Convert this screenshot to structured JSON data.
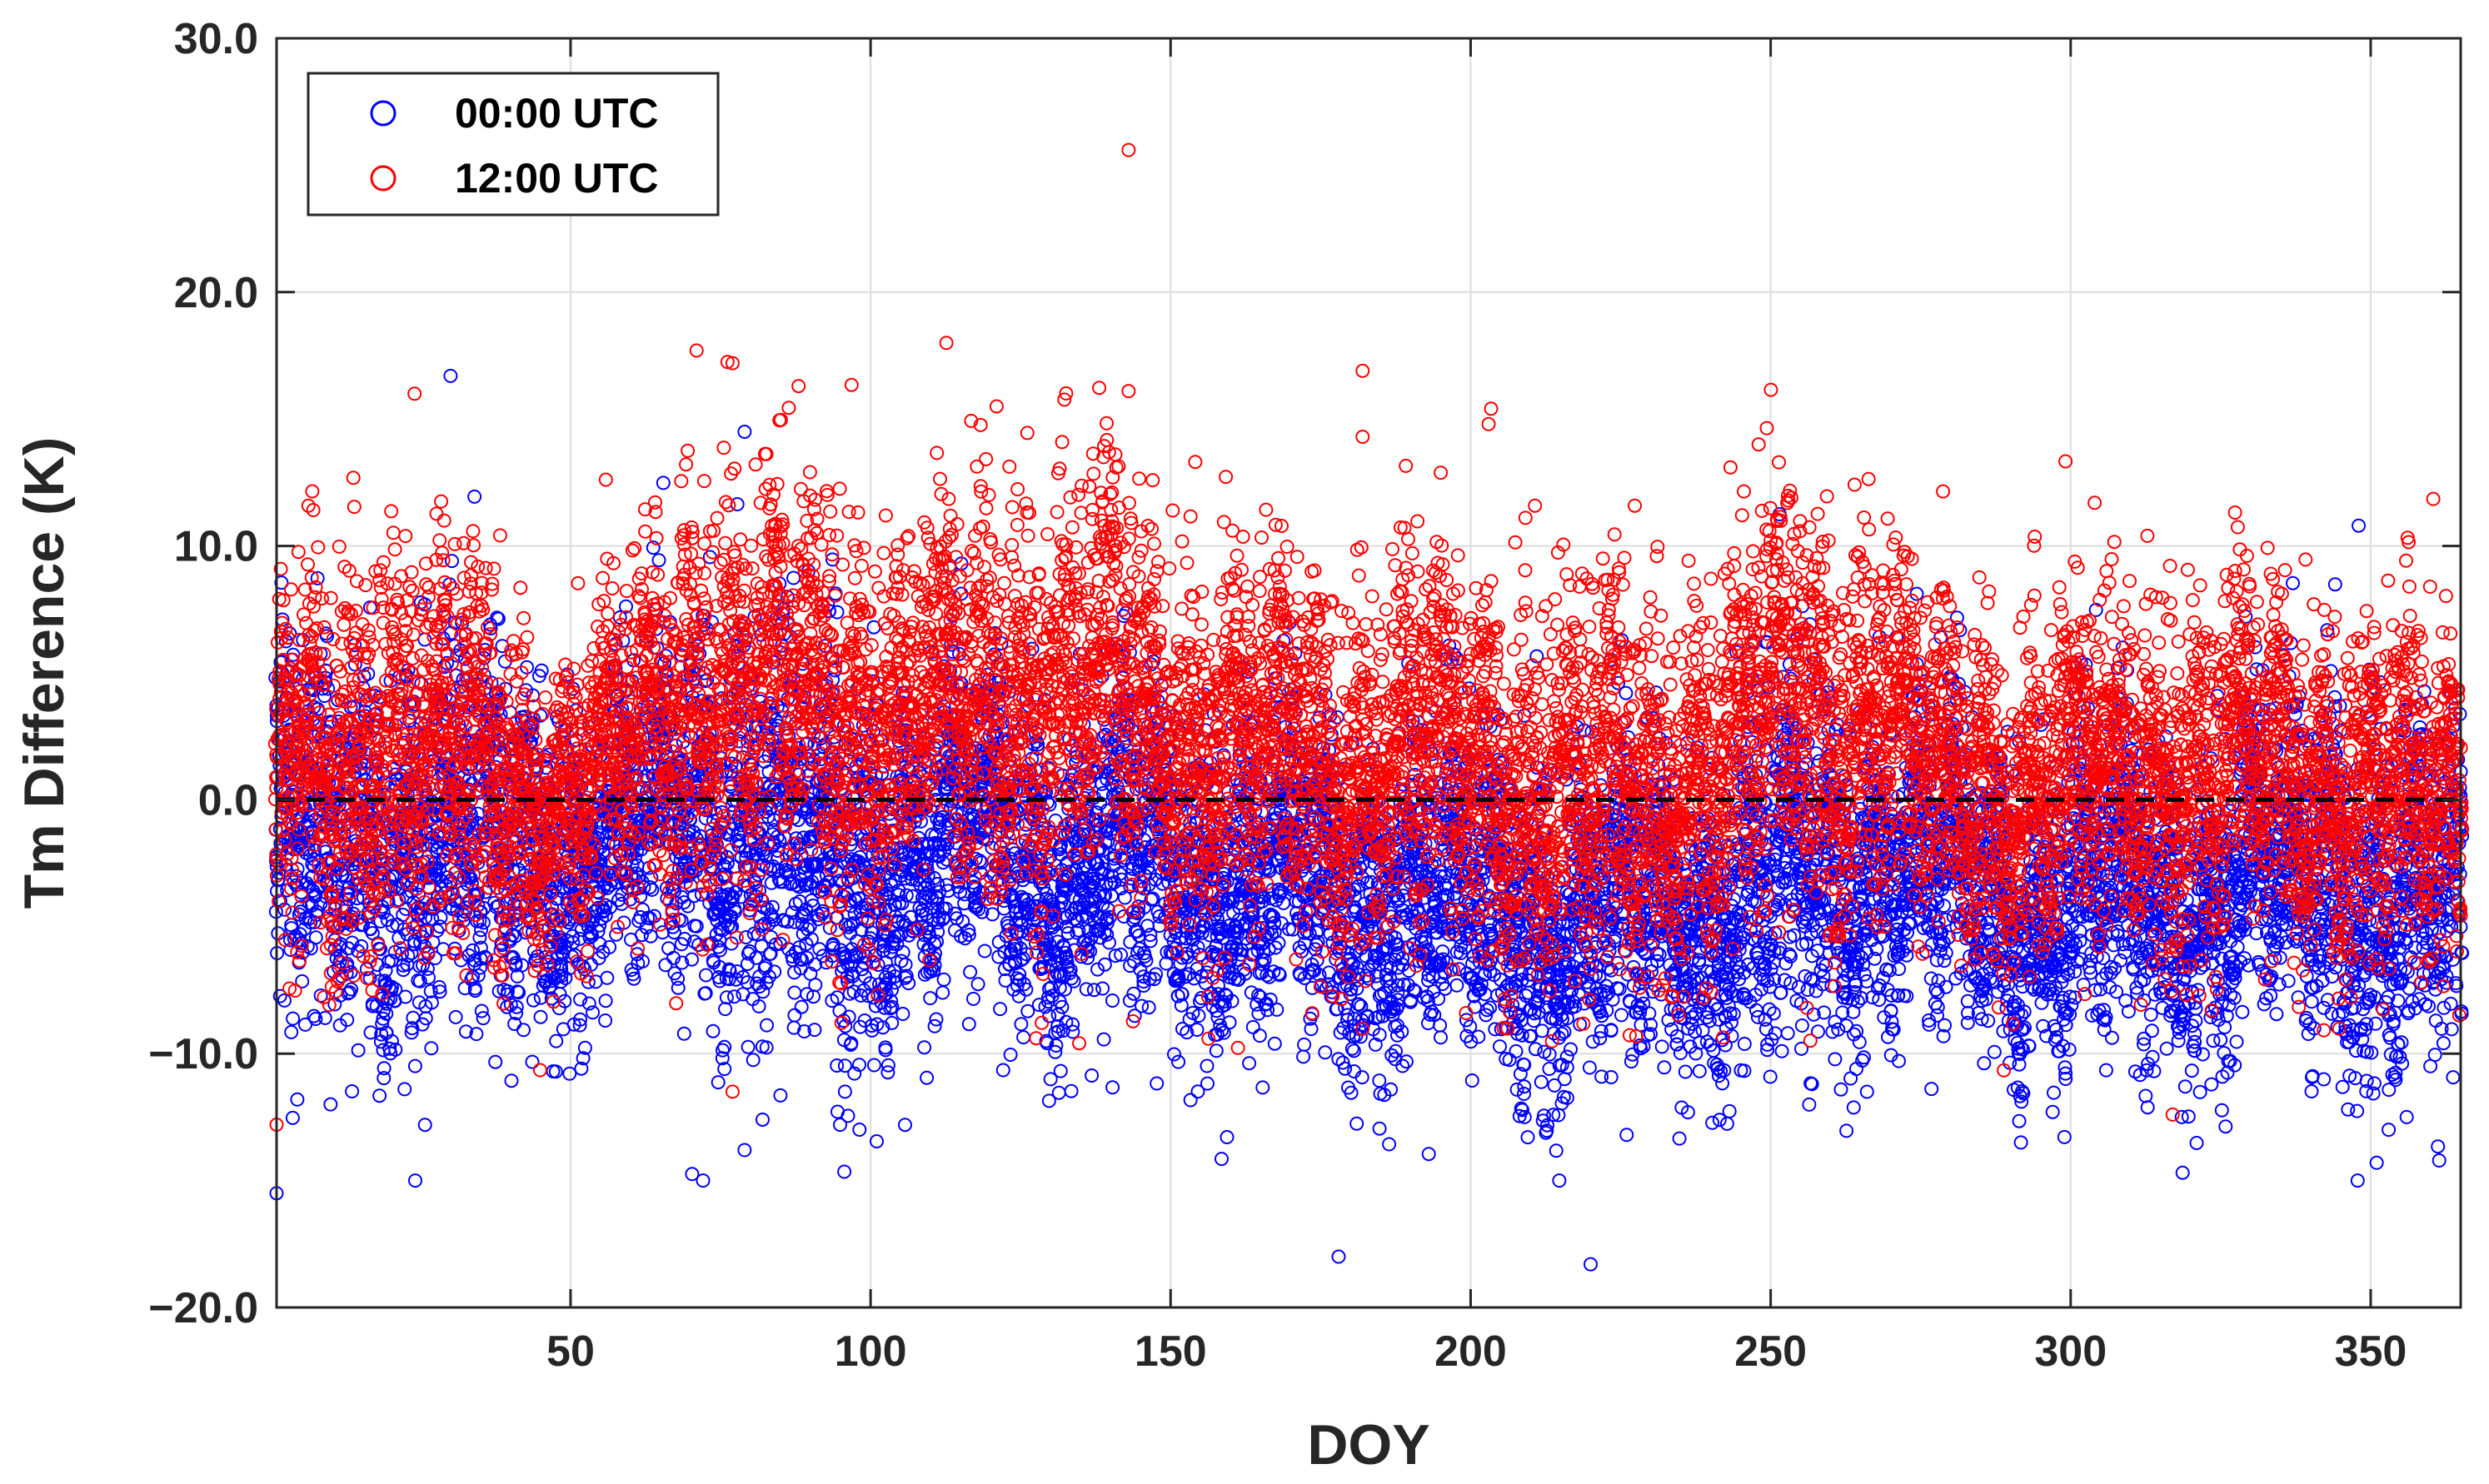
{
  "chart_data": {
    "type": "scatter",
    "title": "",
    "xlabel": "DOY",
    "ylabel": "Tm Difference (K)",
    "xlim": [
      1,
      365
    ],
    "ylim": [
      -20,
      30
    ],
    "xticks": [
      50,
      100,
      150,
      200,
      250,
      300,
      350
    ],
    "xtick_labels": [
      "50",
      "100",
      "150",
      "200",
      "250",
      "300",
      "350"
    ],
    "yticks": [
      -20,
      -10,
      0,
      10,
      20,
      30
    ],
    "ytick_labels": [
      "−20.0",
      "−10.0",
      "0.0",
      "10.0",
      "20.0",
      "30.0"
    ],
    "grid": true,
    "reference_line": {
      "y": 0,
      "style": "dashed",
      "color": "#000000"
    },
    "legend": {
      "position": "top-left",
      "entries": [
        {
          "name": "00:00 UTC",
          "color": "#0000ff",
          "marker": "circle-open"
        },
        {
          "name": "12:00 UTC",
          "color": "#ff0000",
          "marker": "circle-open"
        }
      ]
    },
    "series": [
      {
        "name": "00:00 UTC",
        "color": "#0000ff",
        "envelope": {
          "doy": [
            1,
            10,
            20,
            30,
            40,
            50,
            60,
            70,
            80,
            90,
            100,
            110,
            120,
            130,
            140,
            150,
            160,
            170,
            180,
            190,
            200,
            210,
            220,
            230,
            240,
            250,
            260,
            270,
            280,
            290,
            300,
            310,
            320,
            330,
            340,
            350,
            365
          ],
          "mean": [
            -1.5,
            -1.5,
            -2.0,
            -1.0,
            -2.0,
            -2.5,
            -1.5,
            0.0,
            -1.0,
            -2.0,
            -2.5,
            -2.0,
            -1.0,
            -2.5,
            -2.0,
            -2.5,
            -3.0,
            -3.0,
            -4.0,
            -3.5,
            -4.0,
            -4.5,
            -4.5,
            -4.0,
            -4.5,
            -3.0,
            -3.0,
            -2.0,
            -3.5,
            -4.0,
            -4.0,
            -3.5,
            -4.0,
            -3.0,
            -2.5,
            -4.0,
            -4.0
          ],
          "spread": [
            4.0,
            4.0,
            4.5,
            4.0,
            4.0,
            3.5,
            3.5,
            4.5,
            4.5,
            4.5,
            4.0,
            3.5,
            3.5,
            3.5,
            4.0,
            3.5,
            3.5,
            3.5,
            3.5,
            3.5,
            3.5,
            3.5,
            3.5,
            3.5,
            3.5,
            4.0,
            4.0,
            3.5,
            3.5,
            3.5,
            3.5,
            3.5,
            3.5,
            3.5,
            3.5,
            4.0,
            3.5
          ]
        },
        "outliers": [
          {
            "doy": 1,
            "value": -15.5
          },
          {
            "doy": 30,
            "value": 16.7
          },
          {
            "doy": 79,
            "value": 14.5
          },
          {
            "doy": 79,
            "value": -13.8
          },
          {
            "doy": 178,
            "value": -18.0
          },
          {
            "doy": 220,
            "value": -18.3
          },
          {
            "doy": 226,
            "value": -13.2
          },
          {
            "doy": 348,
            "value": 10.8
          },
          {
            "doy": 351,
            "value": -14.3
          },
          {
            "doy": 353,
            "value": -13.0
          },
          {
            "doy": 356,
            "value": -12.5
          },
          {
            "doy": 10,
            "value": -12.0
          },
          {
            "doy": 82,
            "value": -12.6
          },
          {
            "doy": 209,
            "value": -12.5
          },
          {
            "doy": 297,
            "value": -12.3
          }
        ]
      },
      {
        "name": "12:00 UTC",
        "color": "#ff0000",
        "envelope": {
          "doy": [
            1,
            10,
            20,
            30,
            40,
            50,
            60,
            70,
            80,
            90,
            100,
            110,
            120,
            130,
            140,
            150,
            160,
            170,
            180,
            190,
            200,
            210,
            220,
            230,
            240,
            250,
            260,
            270,
            280,
            290,
            300,
            310,
            320,
            330,
            340,
            350,
            365
          ],
          "mean": [
            1.0,
            1.5,
            2.5,
            2.0,
            0.5,
            0.0,
            2.0,
            5.0,
            4.0,
            4.5,
            3.0,
            3.5,
            4.5,
            4.0,
            4.5,
            2.5,
            2.5,
            2.0,
            1.5,
            2.0,
            1.5,
            0.5,
            0.5,
            0.5,
            1.0,
            3.5,
            3.5,
            3.0,
            0.5,
            0.5,
            1.0,
            1.0,
            1.5,
            1.0,
            1.0,
            0.5,
            -1.0
          ],
          "spread": [
            4.0,
            4.0,
            4.5,
            4.5,
            3.5,
            3.0,
            3.5,
            4.5,
            4.5,
            4.5,
            4.0,
            4.0,
            4.5,
            4.5,
            4.5,
            4.0,
            4.0,
            4.0,
            4.0,
            4.0,
            4.0,
            4.0,
            4.0,
            4.0,
            4.0,
            4.5,
            4.5,
            4.0,
            3.5,
            3.5,
            3.5,
            3.5,
            4.0,
            3.5,
            3.5,
            4.0,
            3.5
          ]
        },
        "outliers": [
          {
            "doy": 143,
            "value": 25.6
          },
          {
            "doy": 71,
            "value": 17.7
          },
          {
            "doy": 77,
            "value": 17.2
          },
          {
            "doy": 182,
            "value": 16.9
          },
          {
            "doy": 24,
            "value": 16.0
          },
          {
            "doy": 143,
            "value": 16.1
          },
          {
            "doy": 88,
            "value": 16.3
          },
          {
            "doy": 121,
            "value": 15.5
          },
          {
            "doy": 203,
            "value": 14.8
          },
          {
            "doy": 182,
            "value": 14.3
          },
          {
            "doy": 248,
            "value": 14.0
          },
          {
            "doy": 1,
            "value": -12.8
          },
          {
            "doy": 317,
            "value": -12.4
          },
          {
            "doy": 77,
            "value": -11.5
          },
          {
            "doy": 304,
            "value": 11.7
          }
        ]
      }
    ]
  }
}
